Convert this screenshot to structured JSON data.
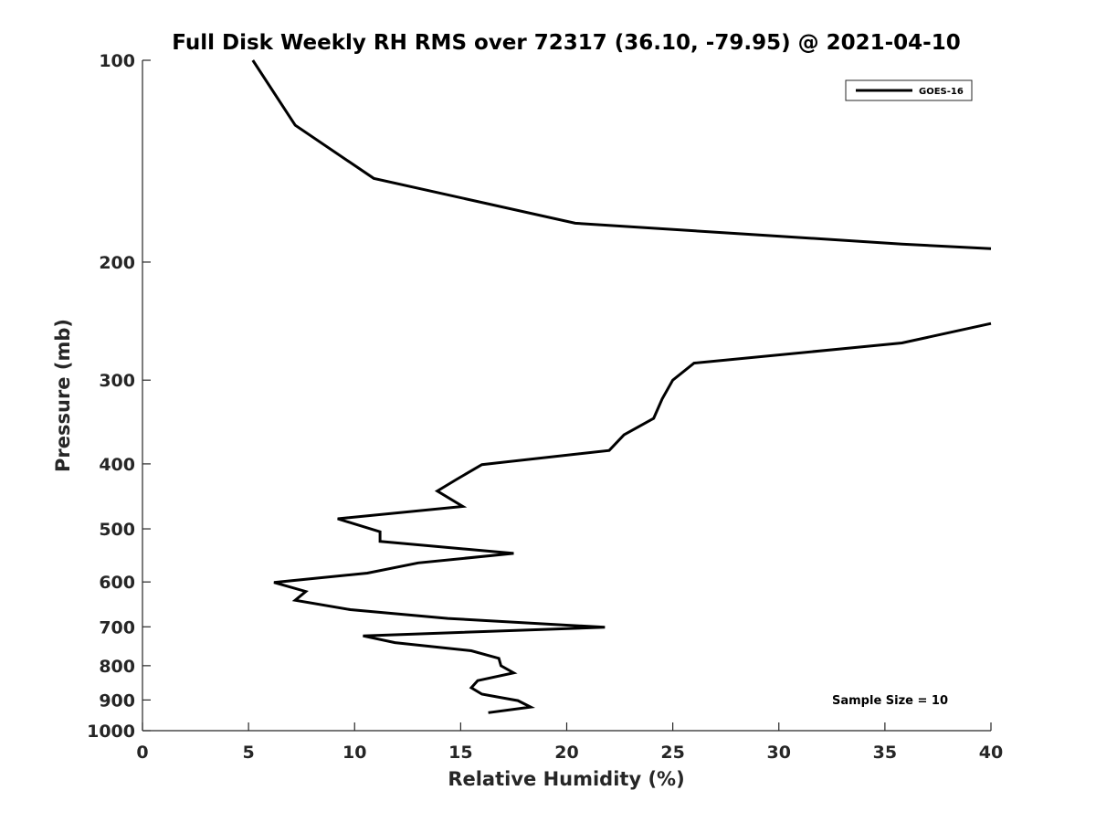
{
  "chart_data": {
    "type": "line",
    "title": "Full Disk Weekly RH RMS over 72317 (36.10, -79.95) @ 2021-04-10",
    "xlabel": "Relative Humidity (%)",
    "ylabel": "Pressure (mb)",
    "xlim": [
      0,
      40
    ],
    "ylim": [
      100,
      1000
    ],
    "y_scale": "log",
    "y_reversed": true,
    "xticks": [
      0,
      5,
      10,
      15,
      20,
      25,
      30,
      35,
      40
    ],
    "yticks": [
      100,
      200,
      300,
      400,
      500,
      600,
      700,
      800,
      900,
      1000
    ],
    "grid": false,
    "legend_position": "top-right",
    "annotation": "Sample Size = 10",
    "series": [
      {
        "name": "GOES-16",
        "color": "#000000",
        "segments": [
          [
            [
              5.2,
              100
            ],
            [
              7.2,
              125
            ],
            [
              10.9,
              150
            ],
            [
              20.4,
              175
            ],
            [
              35.8,
              188
            ],
            [
              40.0,
              191
            ]
          ],
          [
            [
              40.0,
              247
            ],
            [
              35.8,
              264
            ],
            [
              26.0,
              283
            ],
            [
              25.0,
              300
            ],
            [
              24.5,
              320
            ],
            [
              24.1,
              342
            ],
            [
              22.7,
              362
            ],
            [
              22.0,
              382
            ],
            [
              16.0,
              401
            ],
            [
              14.8,
              422
            ],
            [
              13.9,
              439
            ],
            [
              15.1,
              463
            ],
            [
              9.2,
              483
            ],
            [
              11.2,
              505
            ],
            [
              11.2,
              522
            ],
            [
              17.5,
              544
            ],
            [
              13.0,
              562
            ],
            [
              10.6,
              582
            ],
            [
              6.2,
              601
            ],
            [
              7.7,
              620
            ],
            [
              7.2,
              639
            ],
            [
              9.8,
              660
            ],
            [
              14.4,
              680
            ],
            [
              21.8,
              701
            ],
            [
              10.4,
              722
            ],
            [
              11.9,
              739
            ],
            [
              15.5,
              760
            ],
            [
              16.8,
              780
            ],
            [
              16.9,
              800
            ],
            [
              17.5,
              820
            ],
            [
              15.8,
              842
            ],
            [
              15.5,
              863
            ],
            [
              16.0,
              882
            ],
            [
              17.7,
              902
            ],
            [
              18.3,
              922
            ],
            [
              16.3,
              940
            ]
          ]
        ]
      }
    ]
  }
}
